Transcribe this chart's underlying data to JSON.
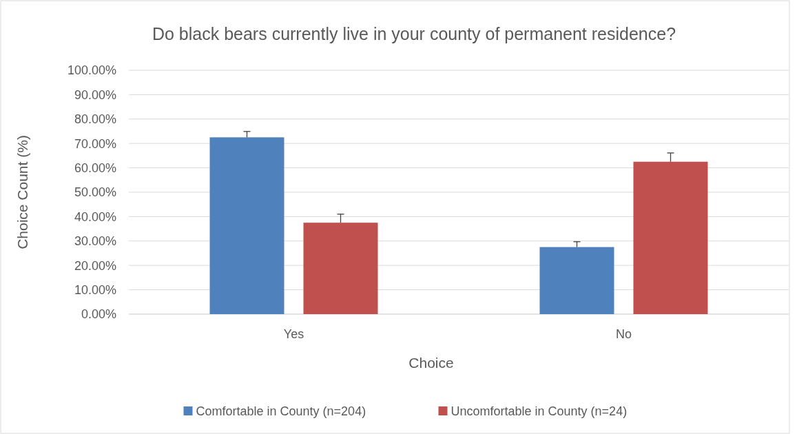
{
  "chart_data": {
    "type": "bar",
    "title": "Do black bears currently live in your county of permanent residence?",
    "xlabel": "Choice",
    "ylabel": "Choice Count (%)",
    "categories": [
      "Yes",
      "No"
    ],
    "series": [
      {
        "name": "Comfortable in County (n=204)",
        "color": "#4f81bd",
        "values": [
          72.5,
          27.5
        ],
        "errors": [
          [
            72.5,
            74.9
          ],
          [
            27.5,
            29.7
          ]
        ]
      },
      {
        "name": "Uncomfortable in County (n=24)",
        "color": "#c0504d",
        "values": [
          37.5,
          62.5
        ],
        "errors": [
          [
            37.5,
            41.0
          ],
          [
            62.5,
            66.1
          ]
        ]
      }
    ],
    "ylim": [
      0,
      100
    ],
    "yticks": [
      {
        "value": 0,
        "label": "0.00%"
      },
      {
        "value": 10,
        "label": "10.00%"
      },
      {
        "value": 20,
        "label": "20.00%"
      },
      {
        "value": 30,
        "label": "30.00%"
      },
      {
        "value": 40,
        "label": "40.00%"
      },
      {
        "value": 50,
        "label": "50.00%"
      },
      {
        "value": 60,
        "label": "60.00%"
      },
      {
        "value": 70,
        "label": "70.00%"
      },
      {
        "value": 80,
        "label": "80.00%"
      },
      {
        "value": 90,
        "label": "90.00%"
      },
      {
        "value": 100,
        "label": "100.00%"
      }
    ],
    "grid": "y",
    "legend": "bottom"
  }
}
